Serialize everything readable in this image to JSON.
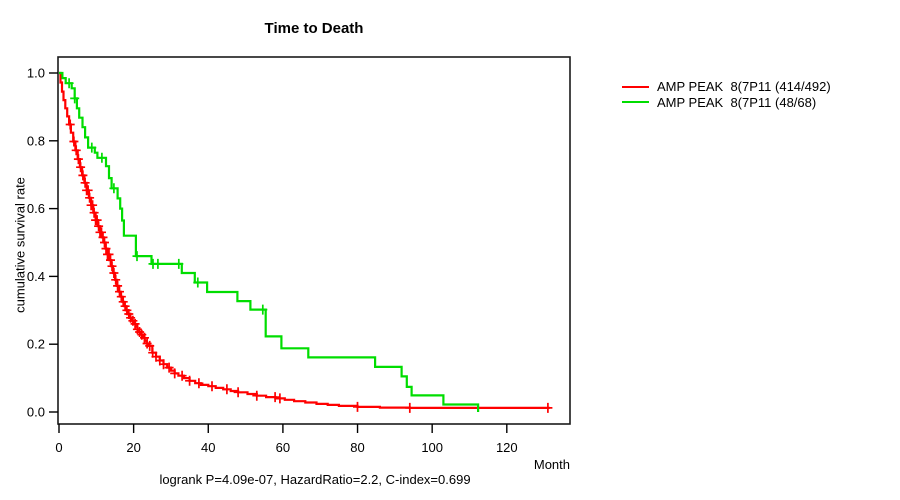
{
  "header": {
    "title": "Time to Death"
  },
  "footer": {
    "stats_line": "logrank P=4.09e-07, HazardRatio=2.2, C-index=0.699"
  },
  "axes": {
    "x_label": "Month",
    "y_label": "cumulative survival rate"
  },
  "legend": {
    "items": [
      {
        "label": "AMP PEAK  8(7P11 (414/492)",
        "color": "#ff0000"
      },
      {
        "label": "AMP PEAK  8(7P11 (48/68)",
        "color": "#00dd00"
      }
    ]
  },
  "chart_data": {
    "type": "line",
    "subtype": "kaplan-meier-step",
    "title": "Time to Death",
    "xlabel": "Month",
    "ylabel": "cumulative survival rate",
    "xlim": [
      0,
      137
    ],
    "ylim": [
      0.0,
      1.0
    ],
    "grid": false,
    "legend_position": "right-outside",
    "annotation": "logrank P=4.09e-07, HazardRatio=2.2, C-index=0.699",
    "x_ticks": [
      {
        "value": 0,
        "label": "0"
      },
      {
        "value": 20,
        "label": "20"
      },
      {
        "value": 40,
        "label": "40"
      },
      {
        "value": 60,
        "label": "60"
      },
      {
        "value": 80,
        "label": "80"
      },
      {
        "value": 100,
        "label": "100"
      },
      {
        "value": 120,
        "label": "120"
      }
    ],
    "y_ticks": [
      {
        "value": 0.0,
        "label": "0.0"
      },
      {
        "value": 0.2,
        "label": "0.2"
      },
      {
        "value": 0.4,
        "label": "0.4"
      },
      {
        "value": 0.6,
        "label": "0.6"
      },
      {
        "value": 0.8,
        "label": "0.8"
      },
      {
        "value": 1.0,
        "label": "1.0"
      }
    ],
    "series": [
      {
        "name": "AMP PEAK  8(7P11 (414/492)",
        "events_ratio": "414/492",
        "color": "#ff0000",
        "end_month": 131.5,
        "steps": [
          [
            0,
            1.0
          ],
          [
            0.4,
            0.972
          ],
          [
            0.8,
            0.945
          ],
          [
            1.2,
            0.92
          ],
          [
            1.7,
            0.896
          ],
          [
            2.2,
            0.872
          ],
          [
            2.7,
            0.848
          ],
          [
            3.2,
            0.824
          ],
          [
            3.8,
            0.798
          ],
          [
            4.4,
            0.772
          ],
          [
            5,
            0.746
          ],
          [
            5.6,
            0.722
          ],
          [
            6.2,
            0.698
          ],
          [
            6.8,
            0.676
          ],
          [
            7.4,
            0.654
          ],
          [
            8,
            0.632
          ],
          [
            8.6,
            0.61
          ],
          [
            9.2,
            0.588
          ],
          [
            9.8,
            0.566
          ],
          [
            10.4,
            0.548
          ],
          [
            11,
            0.53
          ],
          [
            11.5,
            0.515
          ],
          [
            12,
            0.5
          ],
          [
            12.5,
            0.482
          ],
          [
            13,
            0.465
          ],
          [
            13.5,
            0.448
          ],
          [
            14,
            0.43
          ],
          [
            14.5,
            0.41
          ],
          [
            15,
            0.39
          ],
          [
            15.5,
            0.372
          ],
          [
            16,
            0.355
          ],
          [
            16.5,
            0.34
          ],
          [
            17,
            0.325
          ],
          [
            17.5,
            0.312
          ],
          [
            18,
            0.3
          ],
          [
            18.5,
            0.289
          ],
          [
            19,
            0.278
          ],
          [
            19.5,
            0.269
          ],
          [
            20,
            0.26
          ],
          [
            20.5,
            0.252
          ],
          [
            21,
            0.244
          ],
          [
            21.5,
            0.236
          ],
          [
            22,
            0.228
          ],
          [
            22.5,
            0.219
          ],
          [
            23,
            0.21
          ],
          [
            23.5,
            0.202
          ],
          [
            24,
            0.195
          ],
          [
            25,
            0.175
          ],
          [
            26,
            0.163
          ],
          [
            27,
            0.152
          ],
          [
            28,
            0.141
          ],
          [
            29,
            0.131
          ],
          [
            30,
            0.122
          ],
          [
            31,
            0.114
          ],
          [
            32,
            0.107
          ],
          [
            33.5,
            0.1
          ],
          [
            35,
            0.092
          ],
          [
            36.5,
            0.085
          ],
          [
            38,
            0.08
          ],
          [
            40,
            0.076
          ],
          [
            42,
            0.071
          ],
          [
            44,
            0.067
          ],
          [
            46,
            0.062
          ],
          [
            48,
            0.058
          ],
          [
            50.5,
            0.053
          ],
          [
            53,
            0.048
          ],
          [
            55.5,
            0.044
          ],
          [
            58,
            0.04
          ],
          [
            60.5,
            0.036
          ],
          [
            63,
            0.032
          ],
          [
            66,
            0.028
          ],
          [
            69,
            0.024
          ],
          [
            72,
            0.021
          ],
          [
            75,
            0.018
          ],
          [
            80,
            0.015
          ],
          [
            86,
            0.013
          ],
          [
            94,
            0.012
          ]
        ],
        "censor_months": [
          3,
          4,
          4.6,
          5.2,
          5.8,
          6.4,
          7,
          7.4,
          7.8,
          8.2,
          8.6,
          9,
          9.4,
          9.8,
          10.2,
          10.6,
          11,
          11.4,
          11.8,
          12.2,
          12.6,
          13,
          13.4,
          13.8,
          14.2,
          14.7,
          15.2,
          15.7,
          16.2,
          16.7,
          17.2,
          17.7,
          18.2,
          18.7,
          19.2,
          19.8,
          20.4,
          21,
          21.6,
          22.2,
          22.9,
          23.6,
          24.3,
          25.1,
          26,
          27,
          28,
          29.5,
          31,
          33,
          35,
          37.5,
          41,
          45,
          48,
          53,
          57.9,
          59.2,
          80,
          94,
          131
        ]
      },
      {
        "name": "AMP PEAK  8(7P11 (48/68)",
        "events_ratio": "48/68",
        "color": "#00dd00",
        "end_month": 112.3,
        "steps": [
          [
            0,
            1.0
          ],
          [
            0.9,
            0.985
          ],
          [
            1.8,
            0.97
          ],
          [
            3.4,
            0.955
          ],
          [
            4.2,
            0.925
          ],
          [
            4.8,
            0.896
          ],
          [
            5.4,
            0.868
          ],
          [
            6.3,
            0.84
          ],
          [
            7,
            0.81
          ],
          [
            7.8,
            0.78
          ],
          [
            9.6,
            0.765
          ],
          [
            10.3,
            0.75
          ],
          [
            12.6,
            0.725
          ],
          [
            13.4,
            0.69
          ],
          [
            14.1,
            0.66
          ],
          [
            15.7,
            0.63
          ],
          [
            16.4,
            0.6
          ],
          [
            16.9,
            0.565
          ],
          [
            17.4,
            0.52
          ],
          [
            20.6,
            0.46
          ],
          [
            24.8,
            0.437
          ],
          [
            32.9,
            0.41
          ],
          [
            36.4,
            0.382
          ],
          [
            39.7,
            0.354
          ],
          [
            47.8,
            0.327
          ],
          [
            51.3,
            0.302
          ],
          [
            55.4,
            0.223
          ],
          [
            59.6,
            0.188
          ],
          [
            66.8,
            0.161
          ],
          [
            84.7,
            0.133
          ],
          [
            91.8,
            0.105
          ],
          [
            93.2,
            0.074
          ],
          [
            94.5,
            0.049
          ],
          [
            103,
            0.022
          ],
          [
            112.3,
            0
          ]
        ],
        "censor_months": [
          2.7,
          4.2,
          8.8,
          11.5,
          14.7,
          20.9,
          25.2,
          26.5,
          32.1,
          37.2,
          54.6
        ]
      }
    ]
  }
}
